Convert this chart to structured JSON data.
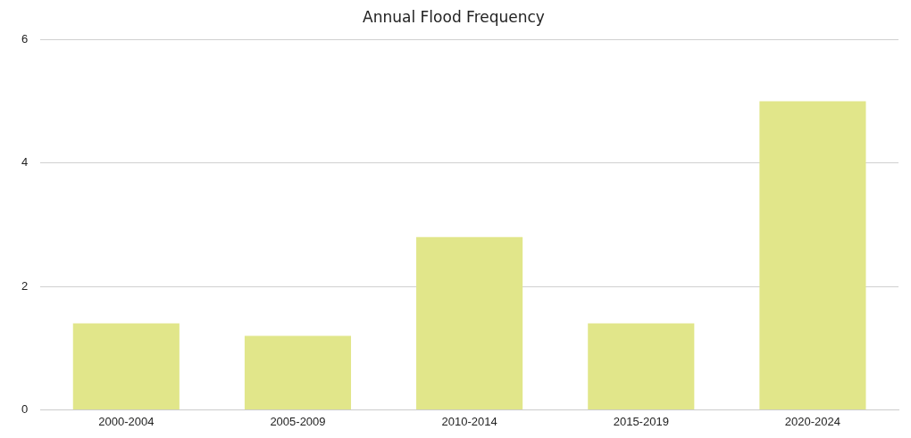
{
  "chart_data": {
    "type": "bar",
    "title": "Annual Flood Frequency",
    "categories": [
      "2000-2004",
      "2005-2009",
      "2010-2014",
      "2015-2019",
      "2020-2024"
    ],
    "values": [
      1.4,
      1.2,
      2.8,
      1.4,
      5
    ],
    "color": "#e1e68a",
    "ylim": [
      0,
      6
    ],
    "yticks": [
      0,
      2,
      4,
      6
    ],
    "grid": "y"
  }
}
